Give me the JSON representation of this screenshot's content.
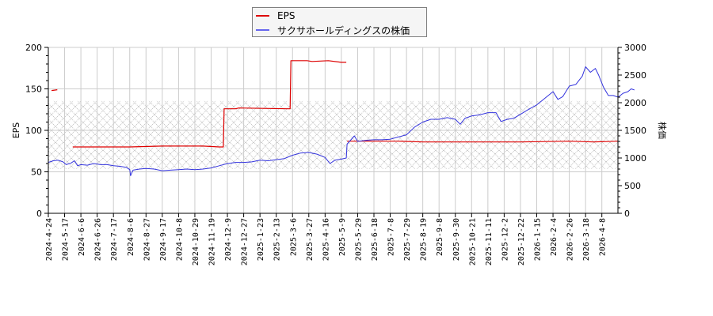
{
  "chart_data": {
    "type": "line",
    "title": "",
    "legend": {
      "position": "top-center",
      "entries": [
        {
          "label": "EPS",
          "color": "#dd0000"
        },
        {
          "label": "サクサホールディングスの株価",
          "color": "#3333dd"
        }
      ]
    },
    "xlabel": "",
    "ylabel": "EPS",
    "ylabel_right": "株価",
    "ylim": [
      0,
      200
    ],
    "ylim_right": [
      0,
      3000
    ],
    "yticks": [
      0,
      50,
      100,
      150,
      200
    ],
    "yticks_right": [
      0,
      500,
      1000,
      1500,
      2000,
      2500,
      3000
    ],
    "grid": true,
    "hatched_band": {
      "ylim_right": [
        800,
        2030
      ]
    },
    "x_tick_labels": [
      "2024-4-24",
      "2024-5-17",
      "2024-6-6",
      "2024-6-26",
      "2024-7-17",
      "2024-8-6",
      "2024-8-27",
      "2024-9-17",
      "2024-10-8",
      "2024-10-29",
      "2024-11-19",
      "2024-12-9",
      "2024-12-27",
      "2025-1-23",
      "2025-2-13",
      "2025-3-6",
      "2025-3-27",
      "2025-4-16",
      "2025-5-9",
      "2025-5-29",
      "2025-6-18",
      "2025-7-8",
      "2025-7-29",
      "2025-8-19",
      "2025-9-8",
      "2025-9-30",
      "2025-10-21",
      "2025-11-11",
      "2025-12-2",
      "2025-12-22",
      "2026-1-15",
      "2026-2-4",
      "2026-2-26",
      "2026-3-18",
      "2026-4-8"
    ],
    "series": [
      {
        "name": "EPS",
        "axis": "left",
        "color": "#dd0000",
        "points": [
          [
            0.2,
            148
          ],
          [
            0.55,
            149
          ],
          [
            null,
            null
          ],
          [
            1.5,
            80
          ],
          [
            5.0,
            80
          ],
          [
            7.0,
            81
          ],
          [
            9.5,
            81
          ],
          [
            10.5,
            80
          ],
          [
            10.75,
            80
          ],
          [
            10.8,
            126
          ],
          [
            11.5,
            126
          ],
          [
            11.7,
            127
          ],
          [
            14.7,
            126
          ],
          [
            14.85,
            126
          ],
          [
            14.9,
            184
          ],
          [
            15.9,
            184
          ],
          [
            16.2,
            183
          ],
          [
            17.2,
            184
          ],
          [
            18.0,
            182
          ],
          [
            18.3,
            182
          ],
          [
            null,
            null
          ],
          [
            18.35,
            87
          ],
          [
            21.5,
            87
          ],
          [
            23.0,
            86
          ],
          [
            25.0,
            86
          ],
          [
            26.5,
            86
          ],
          [
            29.0,
            86
          ],
          [
            32.0,
            87
          ],
          [
            33.5,
            86
          ],
          [
            35.0,
            87
          ]
        ]
      },
      {
        "name": "サクサホールディングスの株価",
        "axis": "right",
        "color": "#3333dd",
        "points": [
          [
            0,
            920
          ],
          [
            0.3,
            950
          ],
          [
            0.6,
            960
          ],
          [
            0.9,
            930
          ],
          [
            1.1,
            880
          ],
          [
            1.4,
            910
          ],
          [
            1.6,
            950
          ],
          [
            1.8,
            860
          ],
          [
            2.0,
            880
          ],
          [
            2.4,
            870
          ],
          [
            2.8,
            900
          ],
          [
            3.2,
            880
          ],
          [
            3.6,
            880
          ],
          [
            4.0,
            860
          ],
          [
            4.4,
            850
          ],
          [
            4.8,
            830
          ],
          [
            5.0,
            790
          ],
          [
            5.05,
            680
          ],
          [
            5.2,
            780
          ],
          [
            5.6,
            800
          ],
          [
            6.0,
            810
          ],
          [
            6.5,
            800
          ],
          [
            7.0,
            770
          ],
          [
            7.5,
            780
          ],
          [
            8.0,
            790
          ],
          [
            8.5,
            800
          ],
          [
            9.0,
            790
          ],
          [
            9.5,
            800
          ],
          [
            10.0,
            820
          ],
          [
            10.5,
            860
          ],
          [
            11.0,
            900
          ],
          [
            11.5,
            920
          ],
          [
            12.0,
            920
          ],
          [
            12.5,
            930
          ],
          [
            13.0,
            960
          ],
          [
            13.5,
            950
          ],
          [
            14.0,
            970
          ],
          [
            14.5,
            990
          ],
          [
            15.0,
            1050
          ],
          [
            15.5,
            1090
          ],
          [
            16.0,
            1100
          ],
          [
            16.5,
            1070
          ],
          [
            17.0,
            1010
          ],
          [
            17.3,
            900
          ],
          [
            17.6,
            960
          ],
          [
            18.0,
            980
          ],
          [
            18.3,
            1000
          ],
          [
            18.35,
            1250
          ],
          [
            18.8,
            1400
          ],
          [
            19.0,
            1300
          ],
          [
            19.5,
            1320
          ],
          [
            20.0,
            1330
          ],
          [
            20.5,
            1330
          ],
          [
            21.0,
            1340
          ],
          [
            21.5,
            1380
          ],
          [
            22.0,
            1420
          ],
          [
            22.5,
            1560
          ],
          [
            23.0,
            1650
          ],
          [
            23.5,
            1700
          ],
          [
            24.0,
            1700
          ],
          [
            24.5,
            1730
          ],
          [
            25.0,
            1700
          ],
          [
            25.3,
            1610
          ],
          [
            25.6,
            1720
          ],
          [
            26.0,
            1760
          ],
          [
            26.5,
            1780
          ],
          [
            27.0,
            1820
          ],
          [
            27.5,
            1820
          ],
          [
            27.8,
            1660
          ],
          [
            28.2,
            1700
          ],
          [
            28.6,
            1720
          ],
          [
            29.0,
            1790
          ],
          [
            29.5,
            1880
          ],
          [
            30.0,
            1960
          ],
          [
            30.5,
            2080
          ],
          [
            31.0,
            2200
          ],
          [
            31.3,
            2060
          ],
          [
            31.6,
            2110
          ],
          [
            32.0,
            2300
          ],
          [
            32.4,
            2330
          ],
          [
            32.8,
            2480
          ],
          [
            33.0,
            2650
          ],
          [
            33.3,
            2550
          ],
          [
            33.6,
            2620
          ],
          [
            33.8,
            2500
          ],
          [
            34.1,
            2280
          ],
          [
            34.4,
            2130
          ],
          [
            34.7,
            2130
          ],
          [
            35.0,
            2100
          ],
          [
            35.3,
            2170
          ],
          [
            35.6,
            2200
          ],
          [
            35.8,
            2250
          ],
          [
            36.0,
            2230
          ]
        ]
      }
    ]
  }
}
